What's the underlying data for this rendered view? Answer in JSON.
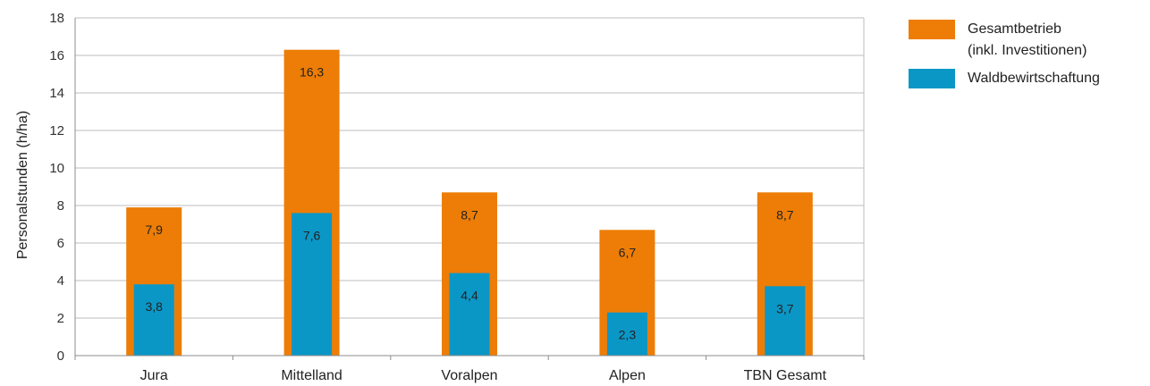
{
  "chart_data": {
    "type": "bar",
    "ylabel": "Personalstunden (h/ha)",
    "xlabel": "",
    "ylim": [
      0,
      18
    ],
    "yticks": [
      0,
      2,
      4,
      6,
      8,
      10,
      12,
      14,
      16,
      18
    ],
    "grid": true,
    "legend_position": "right",
    "categories": [
      "Jura",
      "Mittelland",
      "Voralpen",
      "Alpen",
      "TBN Gesamt"
    ],
    "series": [
      {
        "name": "Gesamtbetrieb (inkl. Investitionen)",
        "name_lines": [
          "Gesamtbetrieb",
          "(inkl. Investitionen)"
        ],
        "color": "#ed7d06",
        "values": [
          7.9,
          16.3,
          8.7,
          6.7,
          8.7
        ],
        "labels": [
          "7,9",
          "16,3",
          "8,7",
          "6,7",
          "8,7"
        ]
      },
      {
        "name": "Waldbewirtschaftung",
        "color": "#0b97c6",
        "values": [
          3.8,
          7.6,
          4.4,
          2.3,
          3.7
        ],
        "labels": [
          "3,8",
          "7,6",
          "4,4",
          "2,3",
          "3,7"
        ]
      }
    ]
  }
}
